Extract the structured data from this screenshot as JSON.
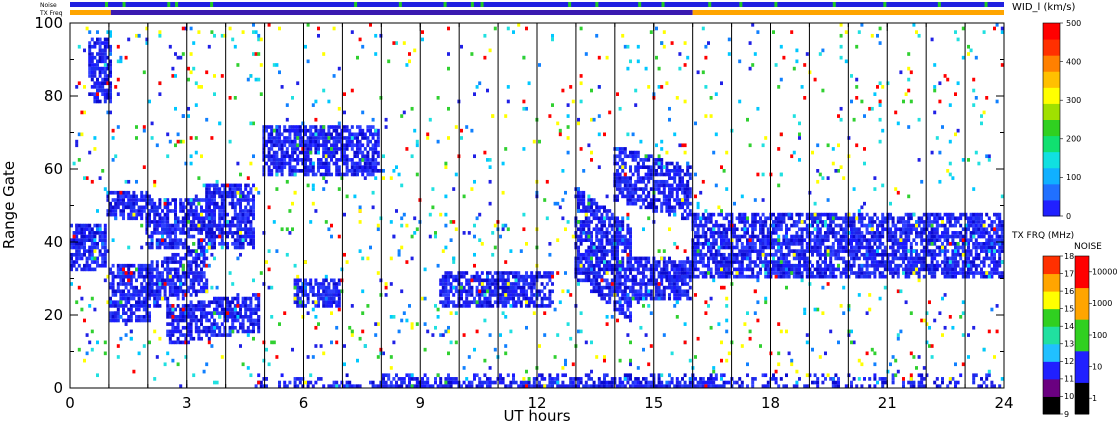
{
  "chart_data": {
    "type": "heatmap",
    "title": "",
    "xlabel": "UT hours",
    "ylabel": "Range Gate",
    "xlim": [
      0,
      24
    ],
    "ylim": [
      0,
      100
    ],
    "x_ticks": [
      "0",
      "3",
      "6",
      "9",
      "12",
      "15",
      "18",
      "21",
      "24"
    ],
    "y_ticks": [
      "0",
      "20",
      "40",
      "60",
      "80",
      "100"
    ],
    "scan_boundaries_hours": [
      1,
      2,
      3,
      4,
      5,
      6,
      7,
      8,
      9,
      10,
      11,
      12,
      13,
      14,
      15,
      16,
      17,
      18,
      19,
      20,
      21,
      22,
      23
    ],
    "status_bars": {
      "noise_label": "Noise",
      "txfreq_label": "TX Freq",
      "noise_color": "#2020e0",
      "noise_spike_color": "#22cc22",
      "noise_spikes_hours": [
        0.9,
        1.35,
        2.5,
        2.7,
        3.6,
        7.3,
        8.45,
        9.6,
        10.3,
        10.55,
        12.8,
        13.5,
        14.6,
        15.2,
        16.4,
        17.2,
        18.1,
        19.6,
        20.9,
        22.3,
        23.5
      ],
      "txfreq_segments": [
        {
          "start": 0,
          "end": 1.05,
          "color": "#ffa500"
        },
        {
          "start": 1.05,
          "end": 16.0,
          "color": "#3a1ab0"
        },
        {
          "start": 16.0,
          "end": 24,
          "color": "#ffa500"
        }
      ]
    },
    "echo_bands": [
      {
        "t0": 0.0,
        "t1": 1.0,
        "g0": 32,
        "g1": 45,
        "slope": 0
      },
      {
        "t0": 0.5,
        "t1": 1.1,
        "g0": 78,
        "g1": 96,
        "slope": 0
      },
      {
        "t0": 1.0,
        "t1": 2.1,
        "g0": 46,
        "g1": 54,
        "slope": 0
      },
      {
        "t0": 1.05,
        "t1": 2.1,
        "g0": 18,
        "g1": 34,
        "slope": 0
      },
      {
        "t0": 2.0,
        "t1": 3.6,
        "g0": 22,
        "g1": 34,
        "slope": 5
      },
      {
        "t0": 2.0,
        "t1": 3.8,
        "g0": 38,
        "g1": 52,
        "slope": 0
      },
      {
        "t0": 3.5,
        "t1": 4.8,
        "g0": 38,
        "g1": 56,
        "slope": 0
      },
      {
        "t0": 2.5,
        "t1": 4.9,
        "g0": 12,
        "g1": 22,
        "slope": 4
      },
      {
        "t0": 5.0,
        "t1": 8.0,
        "g0": 58,
        "g1": 72,
        "slope": 0
      },
      {
        "t0": 5.8,
        "t1": 7.0,
        "g0": 22,
        "g1": 30,
        "slope": 0
      },
      {
        "t0": 9.5,
        "t1": 12.5,
        "g0": 22,
        "g1": 32,
        "slope": 0
      },
      {
        "t0": 13.0,
        "t1": 14.5,
        "g0": 30,
        "g1": 55,
        "slope": -12
      },
      {
        "t0": 14.5,
        "t1": 16.0,
        "g0": 24,
        "g1": 36,
        "slope": 0
      },
      {
        "t0": 14.0,
        "t1": 16.0,
        "g0": 52,
        "g1": 66,
        "slope": -6
      },
      {
        "t0": 16.0,
        "t1": 24.0,
        "g0": 30,
        "g1": 48,
        "slope": 0
      }
    ],
    "colorbars": [
      {
        "title": "WID_l (km/s)",
        "ticks": [
          "0",
          "100",
          "200",
          "300",
          "400",
          "500"
        ],
        "colors": [
          "#2020ff",
          "#2070ff",
          "#10b0ff",
          "#10e0e0",
          "#10e070",
          "#30d020",
          "#a0e000",
          "#ffff00",
          "#ffc000",
          "#ff8000",
          "#ff3000",
          "#ff0000"
        ]
      },
      {
        "title": "TX FRQ (MHz)",
        "ticks": [
          "9",
          "10",
          "11",
          "12",
          "13",
          "14",
          "15",
          "16",
          "17",
          "18"
        ],
        "colors": [
          "#000000",
          "#6a0080",
          "#2020ff",
          "#20c0ff",
          "#20e0a0",
          "#30d020",
          "#ffff00",
          "#ffa500",
          "#ff3000"
        ]
      },
      {
        "title": "NOISE",
        "ticks": [
          "1",
          "10",
          "100",
          "1000",
          "10000"
        ],
        "colors": [
          "#000000",
          "#2020ff",
          "#30d020",
          "#ffa500",
          "#ff0000"
        ]
      }
    ]
  }
}
